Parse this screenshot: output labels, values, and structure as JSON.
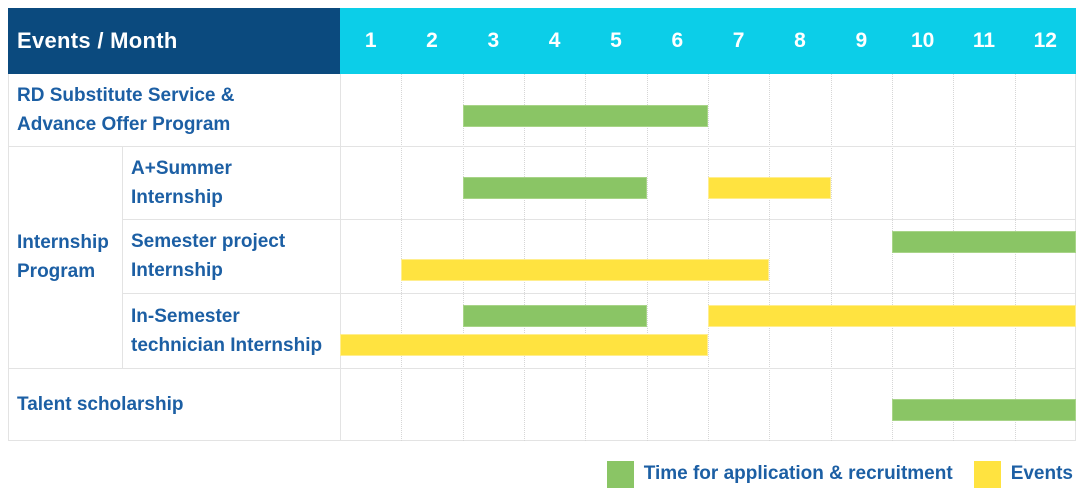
{
  "header": {
    "title": "Events / Month"
  },
  "colors": {
    "header_bg": "#0B4A7E",
    "months_bg": "#0CCEE8",
    "header_text": "#FFFFFF",
    "label_text": "#1C5FA4",
    "grid_line": "#E3E3E3",
    "application_green": "#8AC565",
    "events_yellow": "#FFE340"
  },
  "chart_data": {
    "type": "bar",
    "variant": "gantt-schedule",
    "title": "Events / Month",
    "x_label": "Month",
    "x_ticks": [
      "1",
      "2",
      "3",
      "4",
      "5",
      "6",
      "7",
      "8",
      "9",
      "10",
      "11",
      "12"
    ],
    "x_range": [
      1,
      12
    ],
    "grid": true,
    "legend_position": "bottom-right",
    "series": [
      {
        "key": "application",
        "label": "Time for application & recruitment",
        "color": "#8AC565"
      },
      {
        "key": "events",
        "label": "Events",
        "color": "#FFE340"
      }
    ],
    "row_group": {
      "label": "Internship Program",
      "label_lines": [
        "Internship",
        "Program"
      ],
      "row_indexes": [
        1,
        2,
        3
      ]
    },
    "rows": [
      {
        "label": "RD Substitute Service & Advance Offer Program",
        "label_lines": [
          "RD Substitute Service &",
          "Advance Offer Program"
        ],
        "group": null,
        "bar_lines": 1,
        "bars": [
          {
            "series": "application",
            "start_month": 3,
            "end_month": 6,
            "line": 1
          }
        ]
      },
      {
        "label": "A+Summer Internship",
        "label_lines": [
          "A+Summer",
          "Internship"
        ],
        "group": "Internship Program",
        "bar_lines": 1,
        "bars": [
          {
            "series": "application",
            "start_month": 3,
            "end_month": 5,
            "line": 1
          },
          {
            "series": "events",
            "start_month": 7,
            "end_month": 8,
            "line": 1
          }
        ]
      },
      {
        "label": "Semester project Internship",
        "label_lines": [
          "Semester project",
          "Internship"
        ],
        "group": "Internship Program",
        "bar_lines": 2,
        "bars": [
          {
            "series": "application",
            "start_month": 10,
            "end_month": 12,
            "line": 1
          },
          {
            "series": "events",
            "start_month": 2,
            "end_month": 7,
            "line": 2
          }
        ]
      },
      {
        "label": "In-Semester technician Internship",
        "label_lines": [
          "In-Semester",
          "technician Internship"
        ],
        "group": "Internship Program",
        "bar_lines": 2,
        "bars": [
          {
            "series": "application",
            "start_month": 3,
            "end_month": 5,
            "line": 1
          },
          {
            "series": "events",
            "start_month": 7,
            "end_month": 12,
            "line": 1
          },
          {
            "series": "events",
            "start_month": 1,
            "end_month": 6,
            "line": 2
          }
        ]
      },
      {
        "label": "Talent scholarship",
        "label_lines": [
          "Talent scholarship"
        ],
        "group": null,
        "bar_lines": 1,
        "bars": [
          {
            "series": "application",
            "start_month": 10,
            "end_month": 12,
            "line": 1
          }
        ]
      }
    ]
  }
}
